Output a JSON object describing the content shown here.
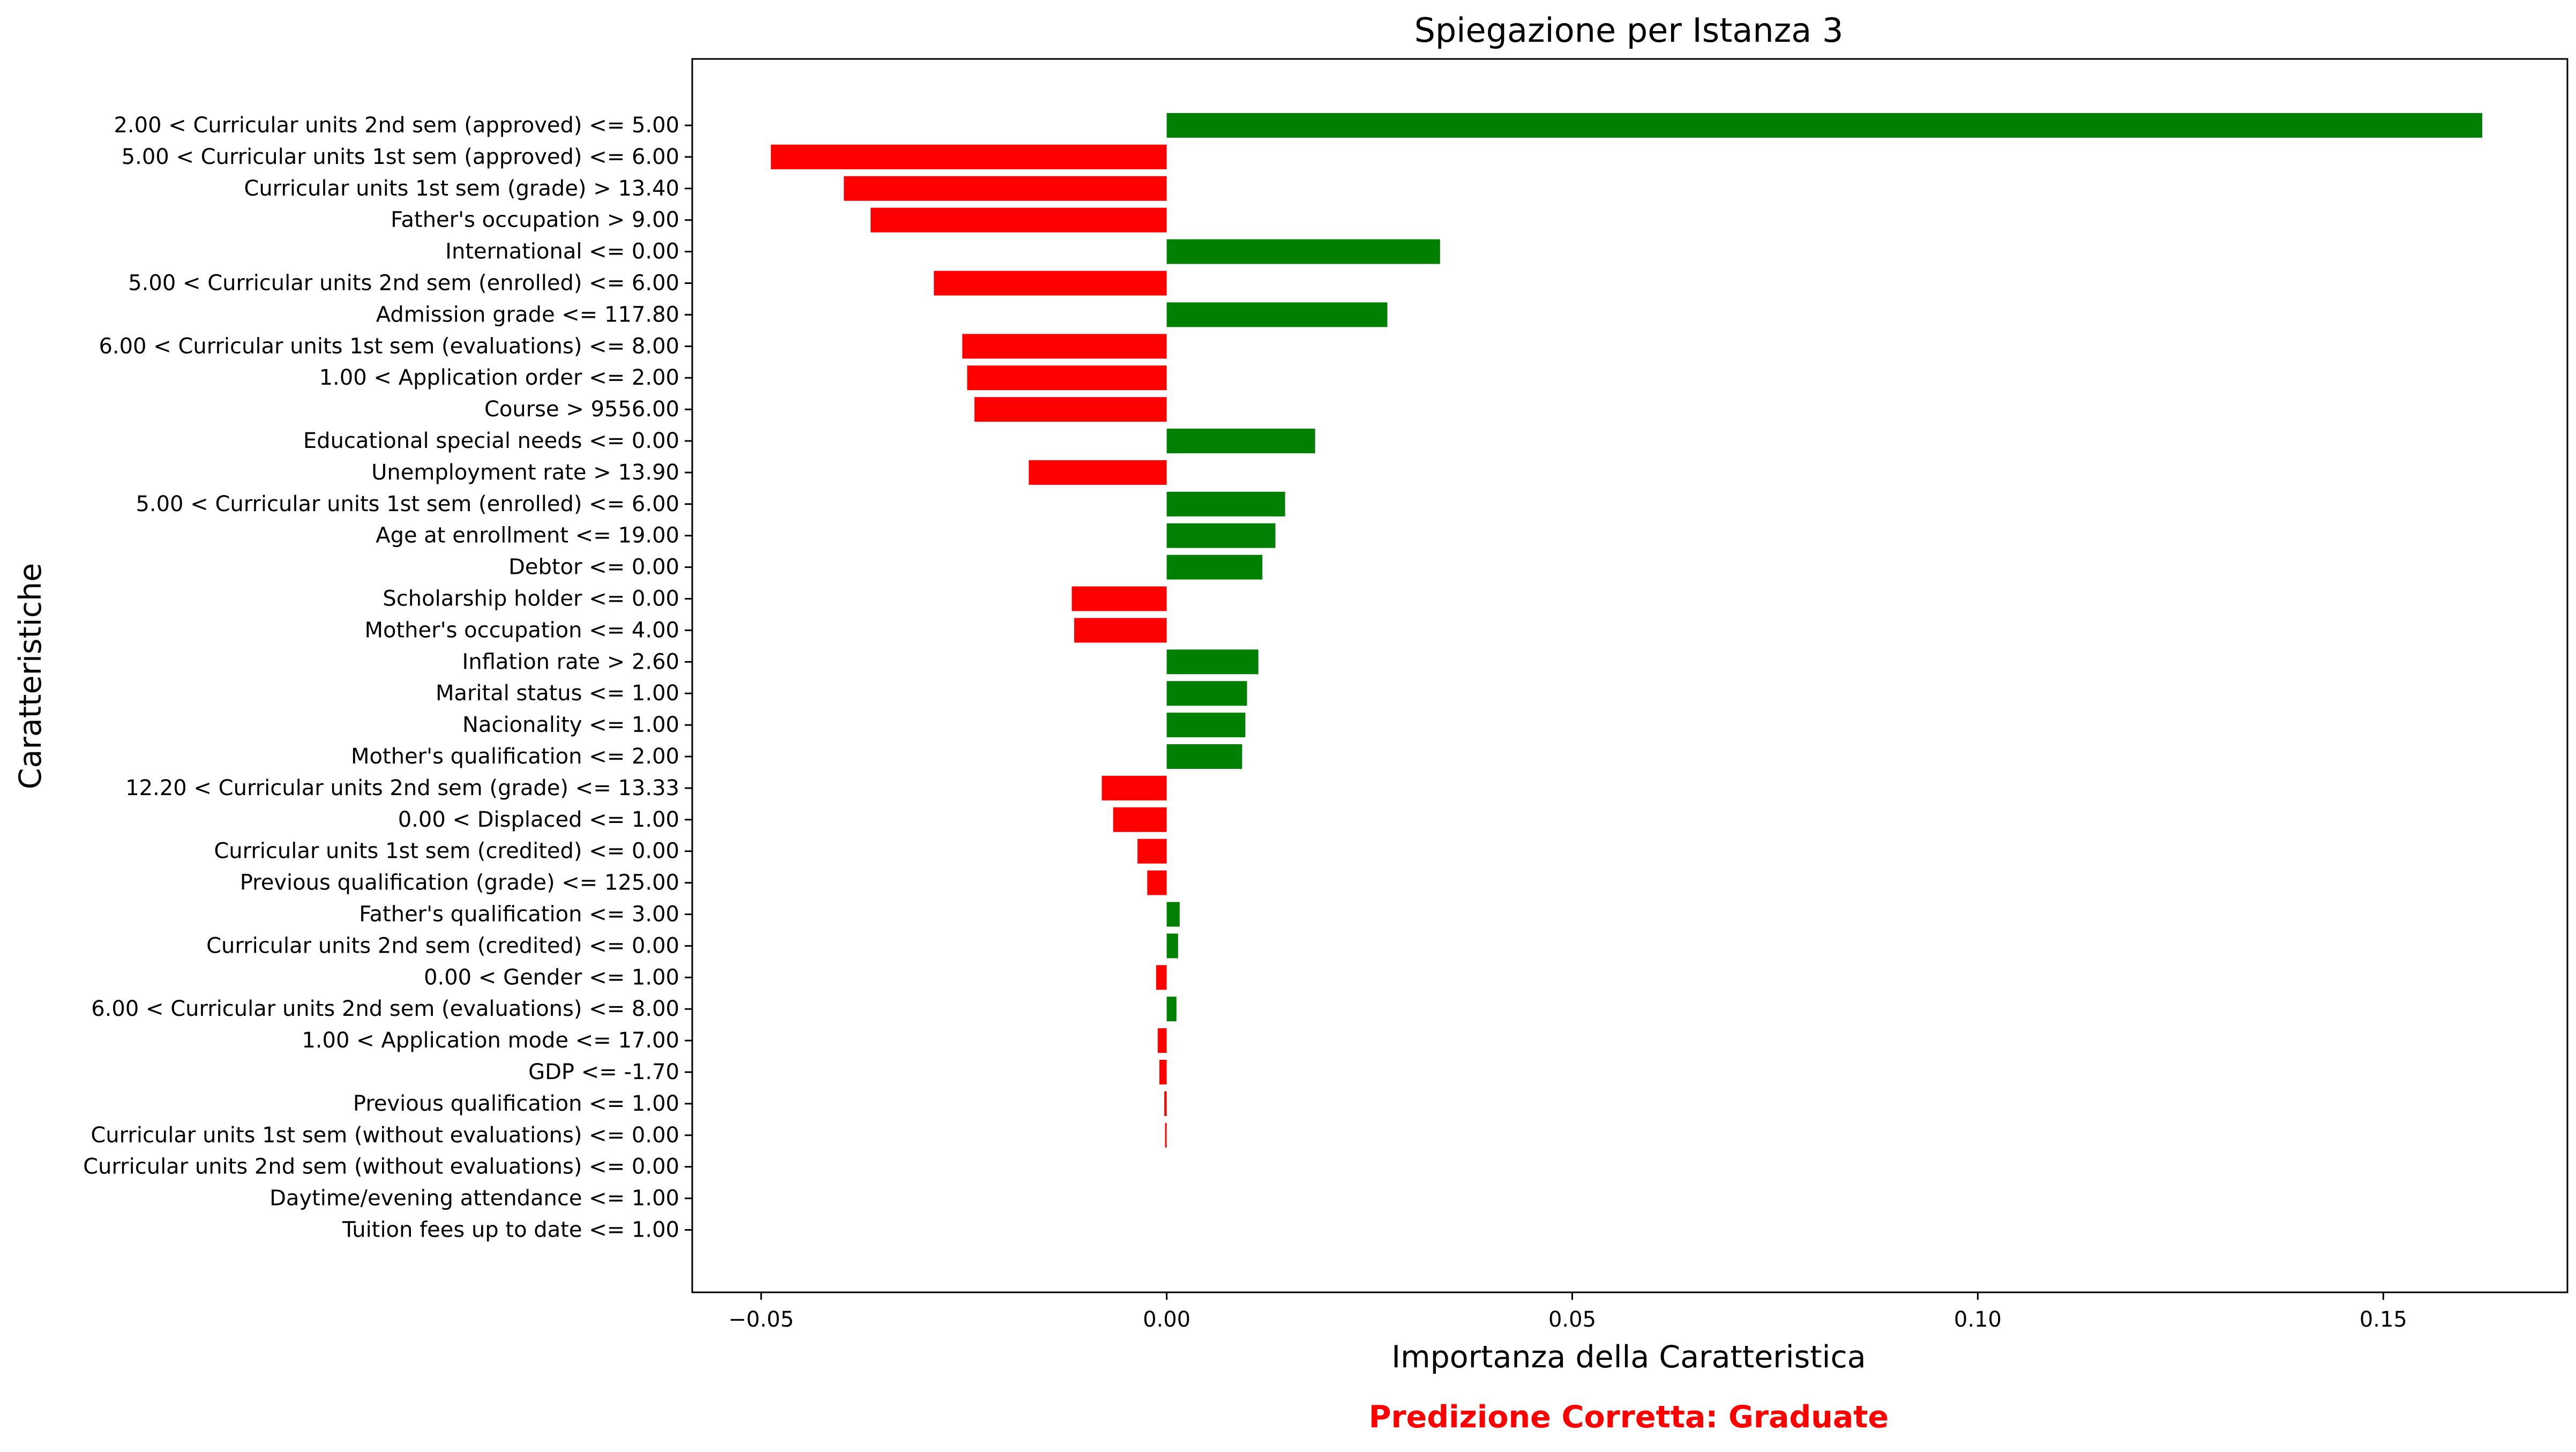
{
  "chart_data": {
    "type": "bar",
    "orientation": "horizontal",
    "title": "Spiegazione per Istanza 3",
    "xlabel": "Importanza della Caratteristica",
    "ylabel": "Caratteristiche",
    "footer": "Predizione Corretta: Graduate",
    "footer_color": "#ff0000",
    "positive_color": "#008000",
    "negative_color": "#ff0000",
    "xlim": [
      -0.0585,
      0.1727
    ],
    "xticks": [
      -0.05,
      0.0,
      0.05,
      0.1,
      0.15
    ],
    "xtick_labels": [
      "−0.05",
      "0.00",
      "0.05",
      "0.10",
      "0.15"
    ],
    "grid": false,
    "legend": "none",
    "categories": [
      "2.00 < Curricular units 2nd sem (approved) <= 5.00",
      "5.00 < Curricular units 1st sem (approved) <= 6.00",
      "Curricular units 1st sem (grade) > 13.40",
      "Father's occupation > 9.00",
      "International <= 0.00",
      "5.00 < Curricular units 2nd sem (enrolled) <= 6.00",
      "Admission grade <= 117.80",
      "6.00 < Curricular units 1st sem (evaluations) <= 8.00",
      "1.00 < Application order <= 2.00",
      "Course > 9556.00",
      "Educational special needs <= 0.00",
      "Unemployment rate > 13.90",
      "5.00 < Curricular units 1st sem (enrolled) <= 6.00",
      "Age at enrollment <= 19.00",
      "Debtor <= 0.00",
      "Scholarship holder <= 0.00",
      "Mother's occupation <= 4.00",
      "Inflation rate > 2.60",
      "Marital status <= 1.00",
      "Nacionality <= 1.00",
      "Mother's qualification <= 2.00",
      "12.20 < Curricular units 2nd sem (grade) <= 13.33",
      "0.00 < Displaced <= 1.00",
      "Curricular units 1st sem (credited) <= 0.00",
      "Previous qualification (grade) <= 125.00",
      "Father's qualification <= 3.00",
      "Curricular units 2nd sem (credited) <= 0.00",
      "0.00 < Gender <= 1.00",
      "6.00 < Curricular units 2nd sem (evaluations) <= 8.00",
      "1.00 < Application mode <= 17.00",
      "GDP <= -1.70",
      "Previous qualification <= 1.00",
      "Curricular units 1st sem (without evaluations) <= 0.00",
      "Curricular units 2nd sem (without evaluations) <= 0.00",
      "Daytime/evening attendance\t <= 1.00",
      "Tuition fees up to date <= 1.00"
    ],
    "values": [
      0.1622,
      -0.0488,
      -0.0398,
      -0.0365,
      0.0337,
      -0.0287,
      0.0272,
      -0.0252,
      -0.0246,
      -0.0237,
      0.0183,
      -0.017,
      0.0146,
      0.0134,
      0.0118,
      -0.0117,
      -0.0114,
      0.0113,
      0.0099,
      0.0097,
      0.0093,
      -0.008,
      -0.0066,
      -0.0036,
      -0.0024,
      0.0016,
      0.0014,
      -0.0013,
      0.0012,
      -0.0011,
      -0.0009,
      -0.0003,
      -0.0002,
      0.0,
      0.0,
      0.0
    ]
  }
}
